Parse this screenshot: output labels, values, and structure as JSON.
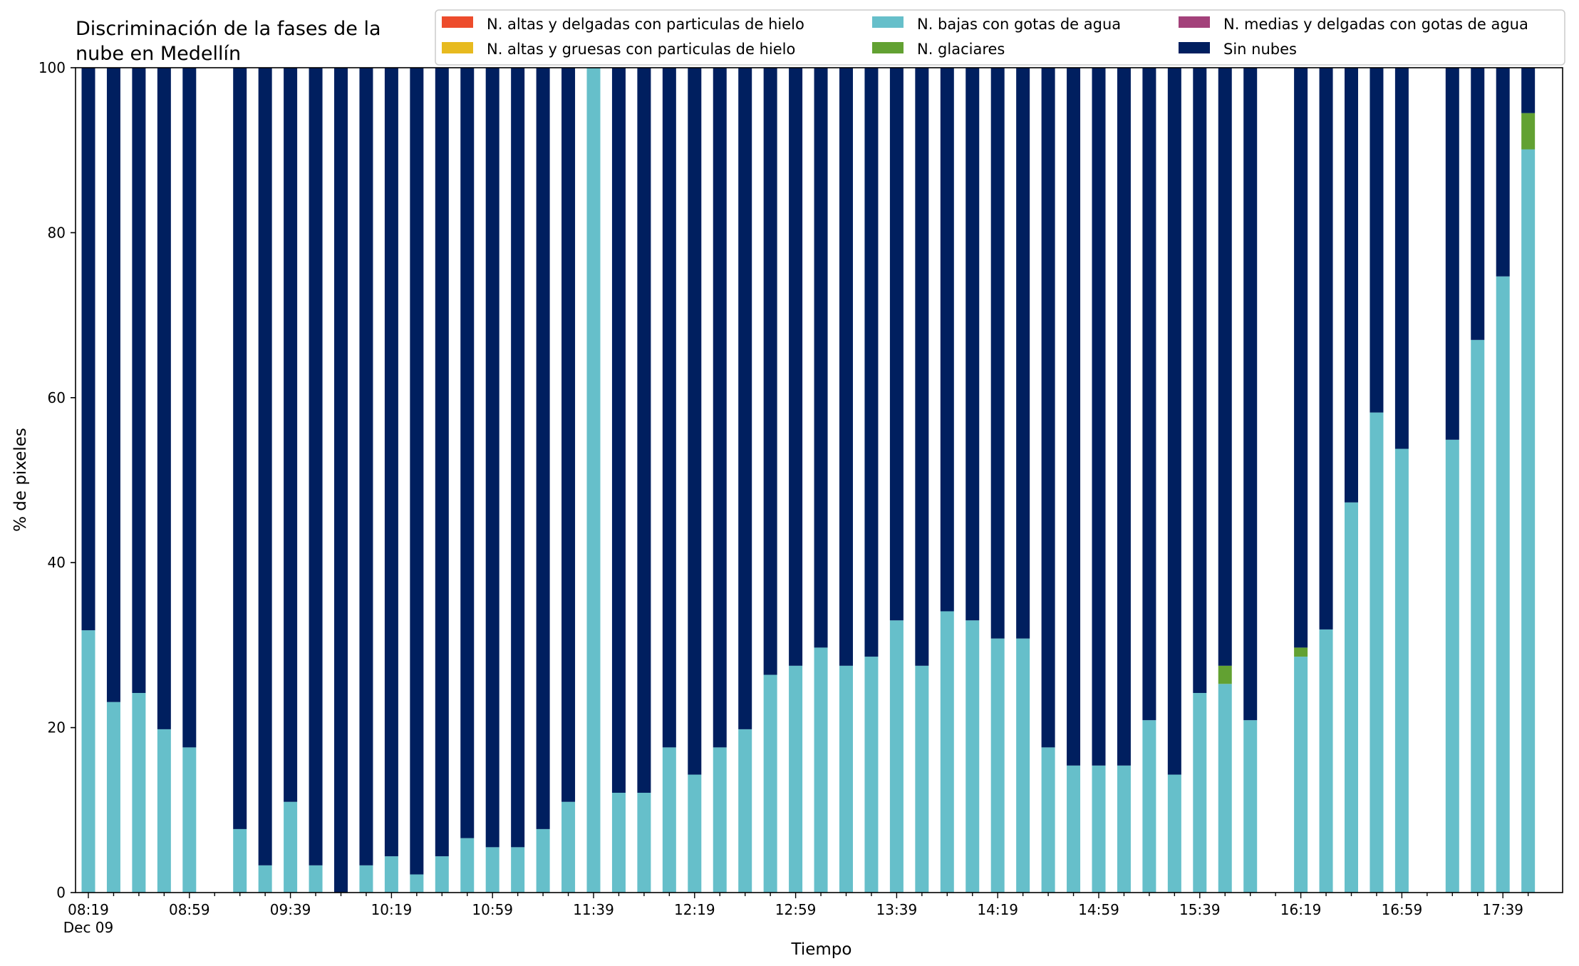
{
  "chart_data": {
    "type": "bar",
    "stacked": true,
    "title_line1": "Discriminación de la fases de la",
    "title_line2": "nube en Medellín",
    "xlabel": "Tiempo",
    "ylabel": "% de pixeles",
    "ylim": [
      0,
      100
    ],
    "yticks": [
      0,
      20,
      40,
      60,
      80,
      100
    ],
    "x_tick_labels": [
      "08:19",
      "08:59",
      "09:39",
      "10:19",
      "10:59",
      "11:39",
      "12:19",
      "12:59",
      "13:39",
      "14:19",
      "14:59",
      "15:39",
      "16:19",
      "16:59",
      "17:39"
    ],
    "x_date_label": "Dec 09",
    "x_interval_minutes": 10,
    "x_start": "08:19",
    "legend_placement": "top-right",
    "grid": false,
    "series": [
      {
        "name": "N. altas y delgadas con particulas de hielo",
        "color": "#ed4c2c"
      },
      {
        "name": "N. altas y gruesas con particulas de hielo",
        "color": "#e7ba1f"
      },
      {
        "name": "N. bajas con gotas de agua",
        "color": "#66bfca"
      },
      {
        "name": "N. glaciares",
        "color": "#62a132"
      },
      {
        "name": "N. medias y delgadas con gotas de agua",
        "color": "#a3417a"
      },
      {
        "name": "Sin nubes",
        "color": "#001f5f"
      }
    ],
    "bars": [
      {
        "time": "08:19",
        "low": 31.8,
        "glacier": 0,
        "clear": 68.2
      },
      {
        "time": "08:29",
        "low": 23.1,
        "glacier": 0,
        "clear": 76.9
      },
      {
        "time": "08:39",
        "low": 24.2,
        "glacier": 0,
        "clear": 75.8
      },
      {
        "time": "08:49",
        "low": 19.8,
        "glacier": 0,
        "clear": 80.2
      },
      {
        "time": "08:59",
        "low": 17.6,
        "glacier": 0,
        "clear": 82.4
      },
      {
        "time": "09:09",
        "low": null,
        "glacier": null,
        "clear": null
      },
      {
        "time": "09:19",
        "low": 7.7,
        "glacier": 0,
        "clear": 92.3
      },
      {
        "time": "09:29",
        "low": 3.3,
        "glacier": 0,
        "clear": 96.7
      },
      {
        "time": "09:39",
        "low": 11.0,
        "glacier": 0,
        "clear": 89.0
      },
      {
        "time": "09:49",
        "low": 3.3,
        "glacier": 0,
        "clear": 96.7
      },
      {
        "time": "09:59",
        "low": 0,
        "glacier": 0,
        "clear": 100
      },
      {
        "time": "10:09",
        "low": 3.3,
        "glacier": 0,
        "clear": 96.7
      },
      {
        "time": "10:19",
        "low": 4.4,
        "glacier": 0,
        "clear": 95.6
      },
      {
        "time": "10:29",
        "low": 2.2,
        "glacier": 0,
        "clear": 97.8
      },
      {
        "time": "10:39",
        "low": 4.4,
        "glacier": 0,
        "clear": 95.6
      },
      {
        "time": "10:49",
        "low": 6.6,
        "glacier": 0,
        "clear": 93.4
      },
      {
        "time": "10:59",
        "low": 5.5,
        "glacier": 0,
        "clear": 94.5
      },
      {
        "time": "11:09",
        "low": 5.5,
        "glacier": 0,
        "clear": 94.5
      },
      {
        "time": "11:19",
        "low": 7.7,
        "glacier": 0,
        "clear": 92.3
      },
      {
        "time": "11:29",
        "low": 11.0,
        "glacier": 0,
        "clear": 89.0
      },
      {
        "time": "11:39",
        "low": 100,
        "glacier": 0,
        "clear": 0
      },
      {
        "time": "11:49",
        "low": 12.1,
        "glacier": 0,
        "clear": 87.9
      },
      {
        "time": "11:59",
        "low": 12.1,
        "glacier": 0,
        "clear": 87.9
      },
      {
        "time": "12:09",
        "low": 17.6,
        "glacier": 0,
        "clear": 82.4
      },
      {
        "time": "12:19",
        "low": 14.3,
        "glacier": 0,
        "clear": 85.7
      },
      {
        "time": "12:29",
        "low": 17.6,
        "glacier": 0,
        "clear": 82.4
      },
      {
        "time": "12:39",
        "low": 19.8,
        "glacier": 0,
        "clear": 80.2
      },
      {
        "time": "12:49",
        "low": 26.4,
        "glacier": 0,
        "clear": 73.6
      },
      {
        "time": "12:59",
        "low": 27.5,
        "glacier": 0,
        "clear": 72.5
      },
      {
        "time": "13:09",
        "low": 29.7,
        "glacier": 0,
        "clear": 70.3
      },
      {
        "time": "13:19",
        "low": 27.5,
        "glacier": 0,
        "clear": 72.5
      },
      {
        "time": "13:29",
        "low": 28.6,
        "glacier": 0,
        "clear": 71.4
      },
      {
        "time": "13:39",
        "low": 33.0,
        "glacier": 0,
        "clear": 67.0
      },
      {
        "time": "13:49",
        "low": 27.5,
        "glacier": 0,
        "clear": 72.5
      },
      {
        "time": "13:59",
        "low": 34.1,
        "glacier": 0,
        "clear": 65.9
      },
      {
        "time": "14:09",
        "low": 33.0,
        "glacier": 0,
        "clear": 67.0
      },
      {
        "time": "14:19",
        "low": 30.8,
        "glacier": 0,
        "clear": 69.2
      },
      {
        "time": "14:29",
        "low": 30.8,
        "glacier": 0,
        "clear": 69.2
      },
      {
        "time": "14:39",
        "low": 17.6,
        "glacier": 0,
        "clear": 82.4
      },
      {
        "time": "14:49",
        "low": 15.4,
        "glacier": 0,
        "clear": 84.6
      },
      {
        "time": "14:59",
        "low": 15.4,
        "glacier": 0,
        "clear": 84.6
      },
      {
        "time": "15:09",
        "low": 15.4,
        "glacier": 0,
        "clear": 84.6
      },
      {
        "time": "15:19",
        "low": 20.9,
        "glacier": 0,
        "clear": 79.1
      },
      {
        "time": "15:29",
        "low": 14.3,
        "glacier": 0,
        "clear": 85.7
      },
      {
        "time": "15:39",
        "low": 24.2,
        "glacier": 0,
        "clear": 75.8
      },
      {
        "time": "15:49",
        "low": 25.3,
        "glacier": 2.2,
        "clear": 72.5
      },
      {
        "time": "15:59",
        "low": 20.9,
        "glacier": 0,
        "clear": 79.1
      },
      {
        "time": "16:09",
        "low": null,
        "glacier": null,
        "clear": null
      },
      {
        "time": "16:19",
        "low": 28.6,
        "glacier": 1.1,
        "clear": 70.3
      },
      {
        "time": "16:29",
        "low": 31.9,
        "glacier": 0,
        "clear": 68.1
      },
      {
        "time": "16:39",
        "low": 47.3,
        "glacier": 0,
        "clear": 52.7
      },
      {
        "time": "16:49",
        "low": 58.2,
        "glacier": 0,
        "clear": 41.8
      },
      {
        "time": "16:59",
        "low": 53.8,
        "glacier": 0,
        "clear": 46.2
      },
      {
        "time": "17:09",
        "low": null,
        "glacier": null,
        "clear": null
      },
      {
        "time": "17:19",
        "low": 54.9,
        "glacier": 0,
        "clear": 45.1
      },
      {
        "time": "17:29",
        "low": 67.0,
        "glacier": 0,
        "clear": 33.0
      },
      {
        "time": "17:39",
        "low": 74.7,
        "glacier": 0,
        "clear": 25.3
      },
      {
        "time": "17:49",
        "low": 90.1,
        "glacier": 4.4,
        "clear": 5.5
      }
    ]
  }
}
